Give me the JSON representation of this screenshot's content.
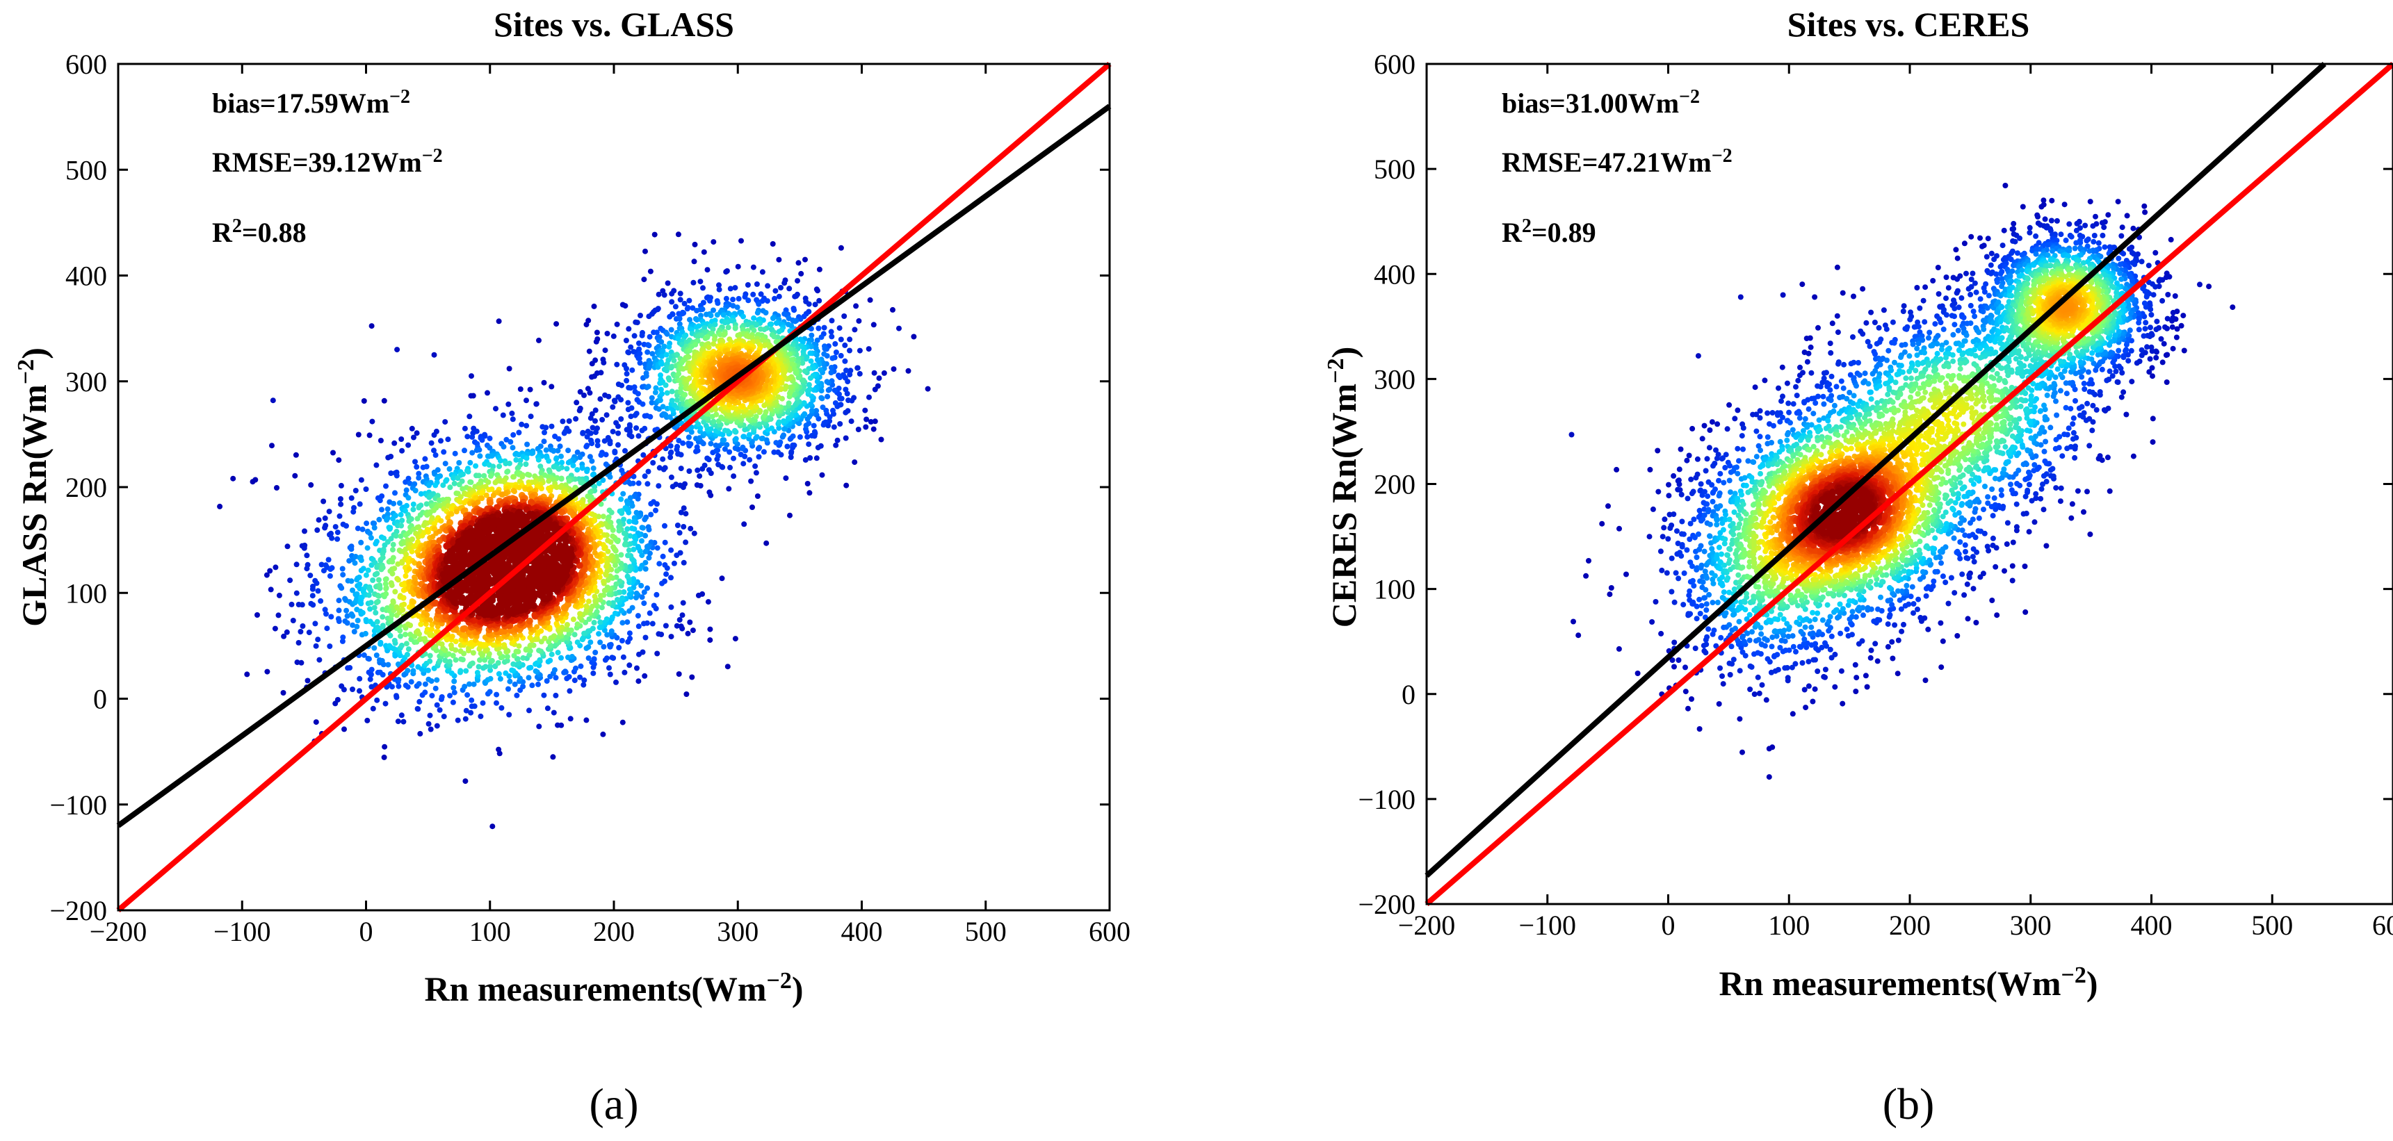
{
  "chart_data": [
    {
      "type": "scatter",
      "panel_label": "(a)",
      "title": "Sites vs. GLASS",
      "xlabel": "Rn measurements(Wm",
      "ylabel": "GLASS Rn(Wm",
      "unit_superscript": "−2",
      "xlim": [
        -200,
        600
      ],
      "ylim": [
        -200,
        600
      ],
      "xticks": [
        -200,
        -100,
        0,
        100,
        200,
        300,
        400,
        500,
        600
      ],
      "yticks": [
        -200,
        -100,
        0,
        100,
        200,
        300,
        400,
        500,
        600
      ],
      "tick_labels_x": [
        "−200",
        "−100",
        "0",
        "100",
        "200",
        "300",
        "400",
        "500",
        "600"
      ],
      "tick_labels_y": [
        "−200",
        "−100",
        "0",
        "100",
        "200",
        "300",
        "400",
        "500",
        "600"
      ],
      "stats": {
        "bias_label": "bias=17.59Wm",
        "rmse_label": "RMSE=39.12Wm",
        "r2_prefix": "R",
        "r2_sup": "2",
        "r2_value": "=0.88",
        "unit_sup": "−2"
      },
      "fit_line": {
        "slope": 0.85,
        "intercept": 50,
        "color": "#000000"
      },
      "one_to_one_line": {
        "slope": 1.0,
        "intercept": 0,
        "color": "#ff0000"
      },
      "density_clusters": [
        {
          "cx": 130,
          "cy": 140,
          "sx": 55,
          "sy": 55,
          "n": 2600
        },
        {
          "cx": 300,
          "cy": 305,
          "sx": 45,
          "sy": 40,
          "n": 2000
        },
        {
          "cx": 70,
          "cy": 95,
          "sx": 60,
          "sy": 55,
          "n": 1400
        }
      ],
      "outliers": [
        {
          "x": -75,
          "y": 282
        },
        {
          "x": 5,
          "y": 262
        },
        {
          "x": 12,
          "y": 244
        },
        {
          "x": 25,
          "y": 330
        },
        {
          "x": 55,
          "y": 325
        },
        {
          "x": 85,
          "y": 305
        },
        {
          "x": 305,
          "y": 165
        },
        {
          "x": 430,
          "y": 350
        }
      ],
      "random_seed": 17
    },
    {
      "type": "scatter",
      "panel_label": "(b)",
      "title": "Sites vs. CERES",
      "xlabel": "Rn measurements(Wm",
      "ylabel": "CERES Rn(Wm",
      "unit_superscript": "−2",
      "xlim": [
        -200,
        600
      ],
      "ylim": [
        -200,
        600
      ],
      "xticks": [
        -200,
        -100,
        0,
        100,
        200,
        300,
        400,
        500,
        600
      ],
      "yticks": [
        -200,
        -100,
        0,
        100,
        200,
        300,
        400,
        500,
        600
      ],
      "tick_labels_x": [
        "−200",
        "−100",
        "0",
        "100",
        "200",
        "300",
        "400",
        "500",
        "600"
      ],
      "tick_labels_y": [
        "−200",
        "−100",
        "0",
        "100",
        "200",
        "300",
        "400",
        "500",
        "600"
      ],
      "stats": {
        "bias_label": "bias=31.00Wm",
        "rmse_label": "RMSE=47.21Wm",
        "r2_prefix": "R",
        "r2_sup": "2",
        "r2_value": "=0.89",
        "unit_sup": "−2"
      },
      "fit_line": {
        "slope": 1.04,
        "intercept": 35,
        "color": "#000000"
      },
      "one_to_one_line": {
        "slope": 1.0,
        "intercept": 0,
        "color": "#ff0000"
      },
      "density_clusters": [
        {
          "cx": 150,
          "cy": 175,
          "sx": 50,
          "sy": 50,
          "n": 2400
        },
        {
          "cx": 330,
          "cy": 370,
          "sx": 35,
          "sy": 35,
          "n": 1800
        },
        {
          "cx": 240,
          "cy": 270,
          "sx": 55,
          "sy": 50,
          "n": 1400
        },
        {
          "cx": 80,
          "cy": 115,
          "sx": 45,
          "sy": 55,
          "n": 900
        }
      ],
      "outliers": [
        {
          "x": -80,
          "y": 247
        },
        {
          "x": 25,
          "y": 322
        },
        {
          "x": 60,
          "y": 378
        },
        {
          "x": 95,
          "y": 380
        },
        {
          "x": 140,
          "y": 360
        },
        {
          "x": 285,
          "y": 108
        },
        {
          "x": 250,
          "y": 115
        },
        {
          "x": 440,
          "y": 390
        }
      ],
      "random_seed": 31
    }
  ]
}
